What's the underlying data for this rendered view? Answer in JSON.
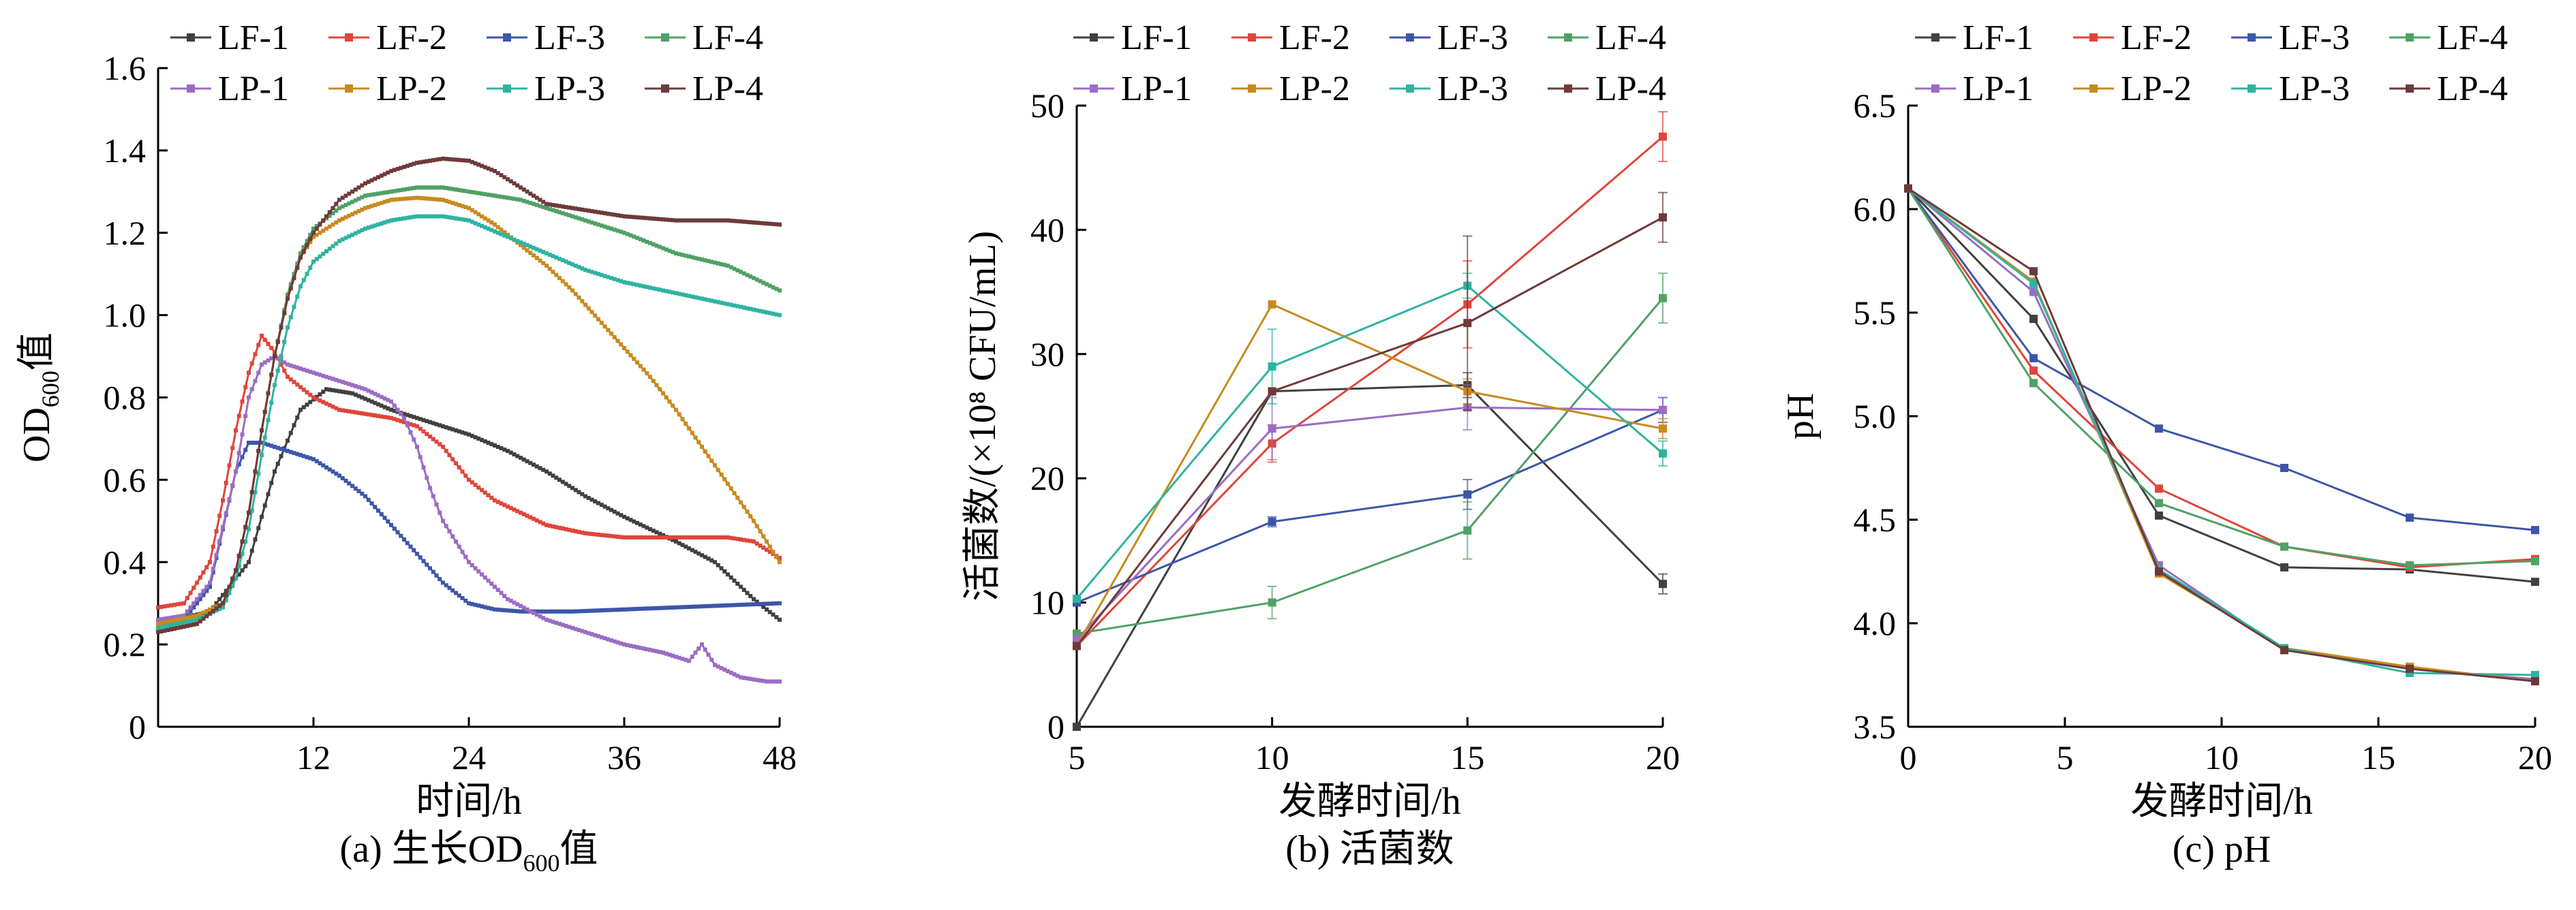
{
  "series_meta": [
    {
      "name": "LF-1",
      "color": "#404040"
    },
    {
      "name": "LF-2",
      "color": "#e0453a"
    },
    {
      "name": "LF-3",
      "color": "#3c56a8"
    },
    {
      "name": "LF-4",
      "color": "#4fa165"
    },
    {
      "name": "LP-1",
      "color": "#9b6cc4"
    },
    {
      "name": "LP-2",
      "color": "#c88a1e"
    },
    {
      "name": "LP-3",
      "color": "#2fb3a0"
    },
    {
      "name": "LP-4",
      "color": "#6e3a3a"
    }
  ],
  "chart_data": [
    {
      "type": "line",
      "caption": "(a) 生长OD600值",
      "xlabel": "时间/h",
      "ylabel": "OD600值",
      "xlim": [
        0,
        48
      ],
      "ylim": [
        0,
        1.6
      ],
      "xticks": [
        12,
        24,
        36,
        48
      ],
      "yticks": [
        0,
        0.2,
        0.4,
        0.6,
        0.8,
        1.0,
        1.2,
        1.4,
        1.6
      ],
      "ytick_labels": [
        "0",
        "0.2",
        "0.4",
        "0.6",
        "0.8",
        "1.0",
        "1.2",
        "1.4",
        "1.6"
      ],
      "legend": "top",
      "marker": "dense",
      "series": [
        {
          "name": "LF-1",
          "x": [
            0,
            4,
            7,
            9,
            11,
            13,
            15,
            18,
            21,
            24,
            27,
            30,
            33,
            36,
            40,
            43,
            46,
            48
          ],
          "values": [
            0.25,
            0.28,
            0.4,
            0.62,
            0.77,
            0.82,
            0.81,
            0.77,
            0.74,
            0.71,
            0.67,
            0.62,
            0.56,
            0.51,
            0.45,
            0.4,
            0.31,
            0.26
          ]
        },
        {
          "name": "LF-2",
          "x": [
            0,
            2,
            4,
            5,
            6,
            7,
            8,
            9,
            10,
            12,
            14,
            16,
            18,
            20,
            22,
            24,
            26,
            28,
            30,
            33,
            36,
            40,
            44,
            46,
            48
          ],
          "values": [
            0.29,
            0.3,
            0.4,
            0.55,
            0.72,
            0.86,
            0.95,
            0.91,
            0.85,
            0.8,
            0.77,
            0.76,
            0.75,
            0.73,
            0.68,
            0.6,
            0.55,
            0.52,
            0.49,
            0.47,
            0.46,
            0.46,
            0.46,
            0.45,
            0.41
          ]
        },
        {
          "name": "LF-3",
          "x": [
            0,
            2,
            4,
            5,
            6,
            7,
            8,
            10,
            12,
            14,
            16,
            18,
            20,
            22,
            24,
            26,
            28,
            32,
            36,
            40,
            44,
            48
          ],
          "values": [
            0.24,
            0.26,
            0.34,
            0.48,
            0.62,
            0.69,
            0.69,
            0.67,
            0.65,
            0.61,
            0.56,
            0.49,
            0.42,
            0.35,
            0.3,
            0.285,
            0.28,
            0.28,
            0.285,
            0.29,
            0.295,
            0.3
          ]
        },
        {
          "name": "LF-4",
          "x": [
            0,
            3,
            5,
            6,
            7,
            8,
            9,
            10,
            11,
            12,
            14,
            16,
            18,
            20,
            22,
            24,
            28,
            32,
            36,
            40,
            44,
            48
          ],
          "values": [
            0.23,
            0.25,
            0.3,
            0.38,
            0.52,
            0.72,
            0.9,
            1.05,
            1.15,
            1.21,
            1.26,
            1.29,
            1.3,
            1.31,
            1.31,
            1.3,
            1.28,
            1.24,
            1.2,
            1.15,
            1.12,
            1.06
          ]
        },
        {
          "name": "LP-1",
          "x": [
            0,
            2,
            4,
            6,
            7,
            8,
            9,
            10,
            12,
            14,
            16,
            18,
            19,
            20,
            21,
            22,
            24,
            27,
            30,
            33,
            36,
            39,
            41,
            42,
            43,
            45,
            47,
            48
          ],
          "values": [
            0.26,
            0.27,
            0.35,
            0.62,
            0.8,
            0.88,
            0.9,
            0.88,
            0.86,
            0.84,
            0.82,
            0.79,
            0.75,
            0.68,
            0.58,
            0.5,
            0.4,
            0.31,
            0.26,
            0.23,
            0.2,
            0.18,
            0.16,
            0.2,
            0.15,
            0.12,
            0.11,
            0.11
          ]
        },
        {
          "name": "LP-2",
          "x": [
            0,
            3,
            5,
            6,
            7,
            8,
            9,
            10,
            11,
            12,
            14,
            16,
            18,
            20,
            22,
            24,
            26,
            28,
            30,
            32,
            34,
            36,
            38,
            40,
            42,
            44,
            46,
            48
          ],
          "values": [
            0.25,
            0.27,
            0.3,
            0.38,
            0.52,
            0.72,
            0.9,
            1.04,
            1.14,
            1.19,
            1.23,
            1.26,
            1.28,
            1.285,
            1.28,
            1.26,
            1.22,
            1.17,
            1.12,
            1.06,
            0.99,
            0.92,
            0.85,
            0.77,
            0.68,
            0.59,
            0.5,
            0.4
          ]
        },
        {
          "name": "LP-3",
          "x": [
            0,
            3,
            5,
            6,
            7,
            8,
            9,
            10,
            11,
            12,
            14,
            16,
            18,
            20,
            22,
            24,
            27,
            30,
            33,
            36,
            39,
            42,
            45,
            48
          ],
          "values": [
            0.24,
            0.26,
            0.29,
            0.36,
            0.48,
            0.66,
            0.83,
            0.97,
            1.07,
            1.13,
            1.18,
            1.21,
            1.23,
            1.24,
            1.24,
            1.23,
            1.19,
            1.15,
            1.11,
            1.08,
            1.06,
            1.04,
            1.02,
            1.0
          ]
        },
        {
          "name": "LP-4",
          "x": [
            0,
            3,
            5,
            6,
            7,
            8,
            9,
            10,
            11,
            12,
            13,
            14,
            16,
            18,
            20,
            22,
            24,
            26,
            28,
            30,
            32,
            34,
            36,
            40,
            44,
            48
          ],
          "values": [
            0.23,
            0.25,
            0.3,
            0.38,
            0.52,
            0.72,
            0.9,
            1.04,
            1.14,
            1.2,
            1.24,
            1.28,
            1.32,
            1.35,
            1.37,
            1.38,
            1.375,
            1.35,
            1.31,
            1.27,
            1.26,
            1.25,
            1.24,
            1.23,
            1.23,
            1.22
          ]
        }
      ]
    },
    {
      "type": "line",
      "caption": "(b) 活菌数",
      "xlabel": "发酵时间/h",
      "ylabel": "活菌数/(×10⁸ CFU/mL)",
      "xlim": [
        5,
        20
      ],
      "ylim": [
        0,
        50
      ],
      "xticks": [
        5,
        10,
        15,
        20
      ],
      "yticks": [
        0,
        10,
        20,
        30,
        40,
        50
      ],
      "ytick_labels": [
        "0",
        "10",
        "20",
        "30",
        "40",
        "50"
      ],
      "legend": "top",
      "marker": "square",
      "series": [
        {
          "name": "LF-1",
          "x": [
            5,
            10,
            15,
            20
          ],
          "values": [
            0,
            27,
            27.5,
            11.5
          ],
          "err": [
            0,
            0,
            1.0,
            0.8
          ]
        },
        {
          "name": "LF-2",
          "x": [
            5,
            10,
            15,
            20
          ],
          "values": [
            6.5,
            22.8,
            34,
            47.5
          ],
          "err": [
            0,
            1.5,
            3.5,
            2.0
          ]
        },
        {
          "name": "LF-3",
          "x": [
            5,
            10,
            15,
            20
          ],
          "values": [
            10,
            16.5,
            18.7,
            25.5
          ],
          "err": [
            0,
            0.4,
            1.2,
            1.0
          ]
        },
        {
          "name": "LF-4",
          "x": [
            5,
            10,
            15,
            20
          ],
          "values": [
            7.5,
            10,
            15.8,
            34.5
          ],
          "err": [
            0,
            1.3,
            2.3,
            2.0
          ]
        },
        {
          "name": "LP-1",
          "x": [
            5,
            10,
            15,
            20
          ],
          "values": [
            7,
            24,
            25.7,
            25.5
          ],
          "err": [
            0,
            2.5,
            1.8,
            1.0
          ]
        },
        {
          "name": "LP-2",
          "x": [
            5,
            10,
            15,
            20
          ],
          "values": [
            6.5,
            34,
            27,
            24
          ],
          "err": [
            0,
            0,
            1.0,
            0.8
          ]
        },
        {
          "name": "LP-3",
          "x": [
            5,
            10,
            15,
            20
          ],
          "values": [
            10.3,
            29,
            35.5,
            22
          ],
          "err": [
            0,
            3.0,
            1.0,
            1.0
          ]
        },
        {
          "name": "LP-4",
          "x": [
            5,
            10,
            15,
            20
          ],
          "values": [
            6.5,
            27,
            32.5,
            41
          ],
          "err": [
            0,
            0,
            7.0,
            2.0
          ]
        }
      ]
    },
    {
      "type": "line",
      "caption": "(c) pH",
      "xlabel": "发酵时间/h",
      "ylabel": "pH",
      "xlim": [
        0,
        20
      ],
      "ylim": [
        3.5,
        6.5
      ],
      "xticks": [
        0,
        5,
        10,
        15,
        20
      ],
      "yticks": [
        3.5,
        4.0,
        4.5,
        5.0,
        5.5,
        6.0,
        6.5
      ],
      "ytick_labels": [
        "3.5",
        "4.0",
        "4.5",
        "5.0",
        "5.5",
        "6.0",
        "6.5"
      ],
      "legend": "top",
      "marker": "square",
      "series": [
        {
          "name": "LF-1",
          "x": [
            0,
            4,
            8,
            12,
            16,
            20
          ],
          "values": [
            6.1,
            5.47,
            4.52,
            4.27,
            4.26,
            4.2
          ]
        },
        {
          "name": "LF-2",
          "x": [
            0,
            4,
            8,
            12,
            16,
            20
          ],
          "values": [
            6.1,
            5.22,
            4.65,
            4.37,
            4.27,
            4.31
          ]
        },
        {
          "name": "LF-3",
          "x": [
            0,
            4,
            8,
            12,
            16,
            20
          ],
          "values": [
            6.1,
            5.28,
            4.94,
            4.75,
            4.51,
            4.45
          ]
        },
        {
          "name": "LF-4",
          "x": [
            0,
            4,
            8,
            12,
            16,
            20
          ],
          "values": [
            6.1,
            5.16,
            4.58,
            4.37,
            4.28,
            4.3
          ]
        },
        {
          "name": "LP-1",
          "x": [
            0,
            4,
            8,
            12,
            16,
            20
          ],
          "values": [
            6.1,
            5.6,
            4.28,
            3.87,
            3.78,
            3.73
          ]
        },
        {
          "name": "LP-2",
          "x": [
            0,
            4,
            8,
            12,
            16,
            20
          ],
          "values": [
            6.1,
            5.65,
            4.24,
            3.88,
            3.79,
            3.72
          ]
        },
        {
          "name": "LP-3",
          "x": [
            0,
            4,
            8,
            12,
            16,
            20
          ],
          "values": [
            6.1,
            5.64,
            4.26,
            3.88,
            3.76,
            3.75
          ]
        },
        {
          "name": "LP-4",
          "x": [
            0,
            4,
            8,
            12,
            16,
            20
          ],
          "values": [
            6.1,
            5.7,
            4.25,
            3.87,
            3.78,
            3.72
          ]
        }
      ]
    }
  ]
}
